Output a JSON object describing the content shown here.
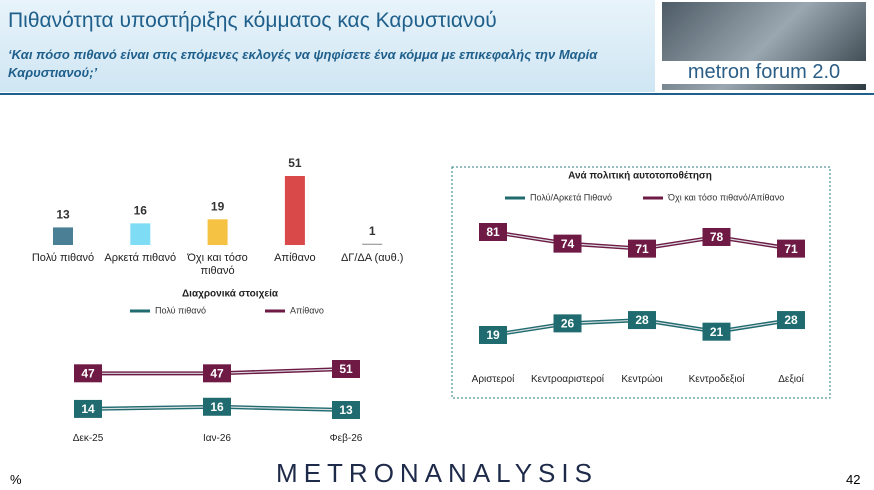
{
  "header": {
    "title": "Πιθανότητα υποστήριξης κόμματος κας Καρυστιανού",
    "subtitle": "‘Και πόσο πιθανό είναι στις επόμενες εκλογές να ψηφίσετε ένα κόμμα με επικεφαλής την Μαρία Καρυστιανού;’",
    "logo": "metron forum 2.0"
  },
  "footer": {
    "brand": "METRONANALYSIS",
    "unit": "%",
    "page": "42"
  },
  "chart_data": [
    {
      "type": "bar",
      "categories": [
        "Πολύ πιθανό",
        "Αρκετά πιθανό",
        "Όχι και τόσο πιθανό",
        "Απίθανο",
        "ΔΓ/ΔΑ (αυθ.)"
      ],
      "values": [
        13,
        16,
        19,
        51,
        1
      ],
      "colors": [
        "#4a7f95",
        "#7fdcf5",
        "#f6c244",
        "#d9494a",
        "#a6a6a6"
      ]
    },
    {
      "type": "line",
      "title": "Διαχρονικά στοιχεία",
      "categories": [
        "Δεκ-25",
        "Ιαν-26",
        "Φεβ-26"
      ],
      "series": [
        {
          "name": "Πολύ πιθανό",
          "color": "#1f6b6f",
          "values": [
            14,
            16,
            13
          ]
        },
        {
          "name": "Απίθανο",
          "color": "#6e1a45",
          "values": [
            47,
            47,
            51
          ]
        }
      ]
    },
    {
      "type": "line",
      "title": "Ανά πολιτική αυτοτοποθέτηση",
      "categories": [
        "Αριστεροί",
        "Κεντροαριστεροί",
        "Κεντρώοι",
        "Κεντροδεξιοί",
        "Δεξιοί"
      ],
      "series": [
        {
          "name": "Πολύ/Αρκετά Πιθανό",
          "color": "#1f6b6f",
          "values": [
            19,
            26,
            28,
            21,
            28
          ]
        },
        {
          "name": "Όχι και τόσο πιθανό/Απίθανο",
          "color": "#6e1a45",
          "values": [
            81,
            74,
            71,
            78,
            71
          ]
        }
      ]
    }
  ]
}
